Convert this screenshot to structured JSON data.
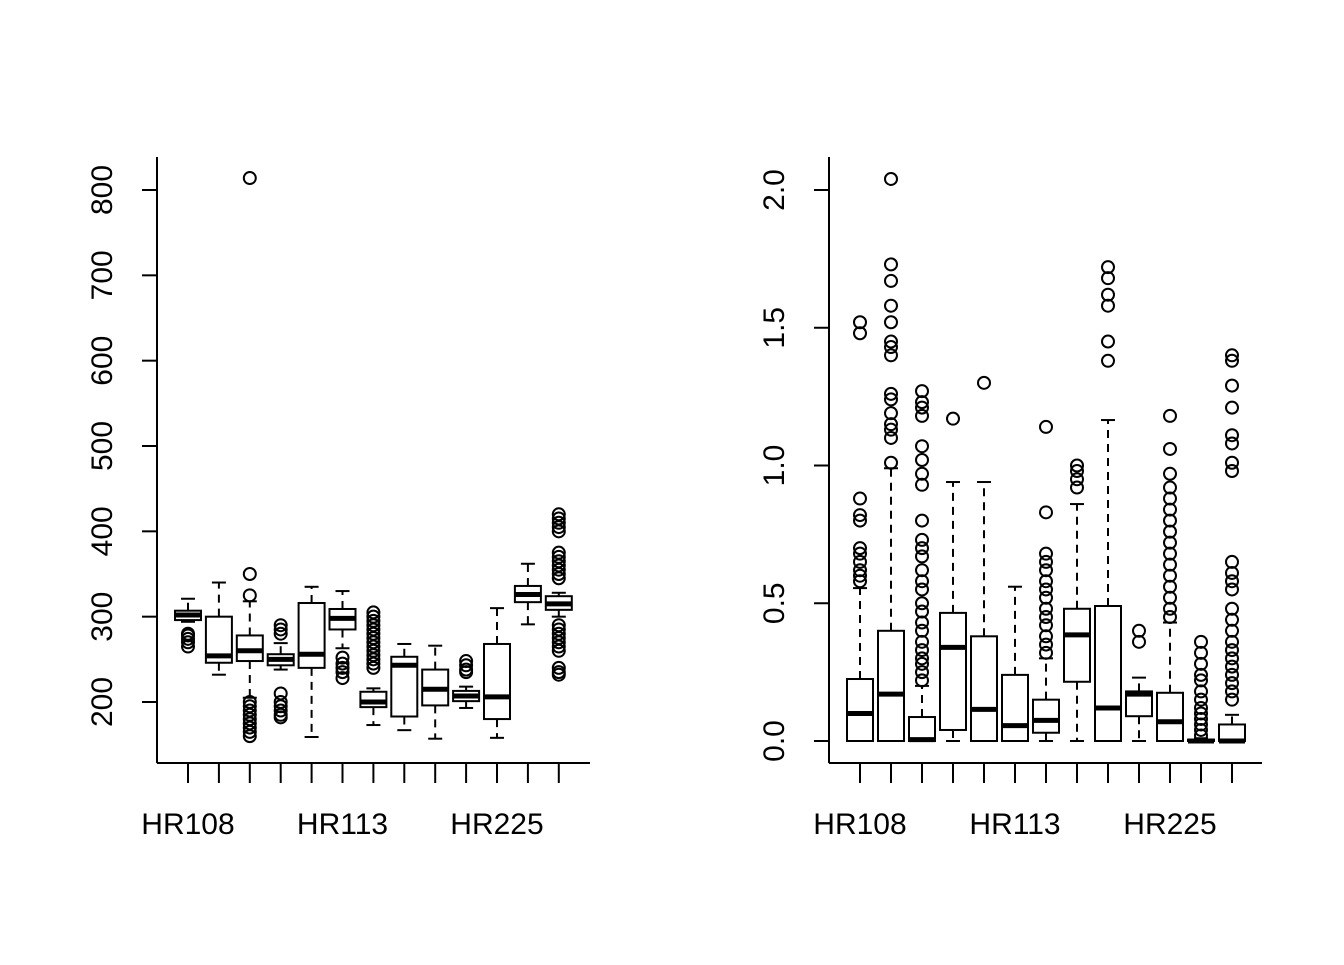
{
  "chart_data": [
    {
      "type": "boxplot",
      "title": "",
      "xlabel": "",
      "ylabel": "",
      "ylim": [
        130,
        830
      ],
      "yticks": [
        200,
        300,
        400,
        500,
        600,
        700,
        800
      ],
      "ytick_labels": [
        "200",
        "300",
        "400",
        "500",
        "600",
        "700",
        "800"
      ],
      "xtick_labels": [
        "HR108",
        "",
        "",
        "",
        "",
        "HR113",
        "",
        "",
        "",
        "",
        "HR225",
        "",
        ""
      ],
      "grid": false,
      "boxes": [
        {
          "lo": 294,
          "q1": 296,
          "med": 302,
          "q3": 307,
          "hi": 321,
          "out": [
            265,
            270,
            274,
            278,
            280
          ]
        },
        {
          "lo": 232,
          "q1": 246,
          "med": 254,
          "q3": 300,
          "hi": 340,
          "out": []
        },
        {
          "lo": 205,
          "q1": 248,
          "med": 260,
          "q3": 278,
          "hi": 318,
          "out": [
            814,
            350,
            325,
            200,
            195,
            190,
            185,
            180,
            175,
            170,
            165,
            160
          ]
        },
        {
          "lo": 238,
          "q1": 243,
          "med": 250,
          "q3": 256,
          "hi": 269,
          "out": [
            290,
            285,
            280,
            210,
            200,
            195,
            190,
            185,
            182
          ]
        },
        {
          "lo": 159,
          "q1": 240,
          "med": 256,
          "q3": 316,
          "hi": 335,
          "out": []
        },
        {
          "lo": 263,
          "q1": 285,
          "med": 298,
          "q3": 309,
          "hi": 330,
          "out": [
            252,
            245,
            240,
            235,
            228
          ]
        },
        {
          "lo": 173,
          "q1": 194,
          "med": 200,
          "q3": 212,
          "hi": 216,
          "out": [
            305,
            300,
            295,
            290,
            285,
            280,
            275,
            270,
            265,
            260,
            255,
            250,
            245,
            240
          ]
        },
        {
          "lo": 167,
          "q1": 183,
          "med": 243,
          "q3": 253,
          "hi": 268,
          "out": []
        },
        {
          "lo": 157,
          "q1": 196,
          "med": 215,
          "q3": 238,
          "hi": 266,
          "out": []
        },
        {
          "lo": 193,
          "q1": 201,
          "med": 207,
          "q3": 213,
          "hi": 218,
          "out": [
            248,
            243,
            238,
            235
          ]
        },
        {
          "lo": 158,
          "q1": 180,
          "med": 206,
          "q3": 268,
          "hi": 310,
          "out": []
        },
        {
          "lo": 291,
          "q1": 317,
          "med": 326,
          "q3": 336,
          "hi": 362,
          "out": []
        },
        {
          "lo": 300,
          "q1": 308,
          "med": 315,
          "q3": 324,
          "hi": 328,
          "out": [
            420,
            415,
            410,
            405,
            400,
            375,
            370,
            365,
            360,
            355,
            350,
            345,
            290,
            285,
            280,
            275,
            270,
            265,
            260,
            240,
            235,
            232
          ]
        }
      ]
    },
    {
      "type": "boxplot",
      "title": "",
      "xlabel": "",
      "ylabel": "",
      "ylim": [
        -0.08,
        2.12
      ],
      "yticks": [
        0,
        0.5,
        1,
        1.5,
        2
      ],
      "ytick_labels": [
        "0.0",
        "0.5",
        "1.0",
        "1.5",
        "2.0"
      ],
      "xtick_labels": [
        "HR108",
        "",
        "",
        "",
        "",
        "HR113",
        "",
        "",
        "",
        "",
        "HR225",
        "",
        ""
      ],
      "grid": false,
      "boxes": [
        {
          "lo": 0,
          "q1": 0,
          "med": 0.1,
          "q3": 0.225,
          "hi": 0.555,
          "out": [
            0.58,
            0.6,
            0.62,
            0.65,
            0.68,
            0.7,
            0.8,
            0.82,
            0.88,
            1.48,
            1.52
          ]
        },
        {
          "lo": 0,
          "q1": 0,
          "med": 0.17,
          "q3": 0.4,
          "hi": 0.99,
          "out": [
            1.01,
            1.1,
            1.13,
            1.15,
            1.19,
            1.24,
            1.26,
            1.4,
            1.43,
            1.45,
            1.52,
            1.58,
            1.67,
            1.73,
            2.04
          ]
        },
        {
          "lo": 0,
          "q1": 0,
          "med": 0.005,
          "q3": 0.087,
          "hi": 0.2,
          "out": [
            0.22,
            0.25,
            0.28,
            0.3,
            0.33,
            0.36,
            0.4,
            0.43,
            0.47,
            0.5,
            0.55,
            0.58,
            0.62,
            0.67,
            0.7,
            0.73,
            0.8,
            0.93,
            0.97,
            1.02,
            1.07,
            1.18,
            1.21,
            1.23,
            1.27
          ]
        },
        {
          "lo": 0,
          "q1": 0.04,
          "med": 0.34,
          "q3": 0.465,
          "hi": 0.94,
          "out": [
            1.17
          ]
        },
        {
          "lo": 0,
          "q1": 0,
          "med": 0.115,
          "q3": 0.38,
          "hi": 0.94,
          "out": [
            1.3
          ]
        },
        {
          "lo": 0,
          "q1": 0,
          "med": 0.056,
          "q3": 0.24,
          "hi": 0.56,
          "out": []
        },
        {
          "lo": 0,
          "q1": 0.03,
          "med": 0.075,
          "q3": 0.15,
          "hi": 0.3,
          "out": [
            0.32,
            0.35,
            0.38,
            0.42,
            0.45,
            0.48,
            0.52,
            0.55,
            0.58,
            0.62,
            0.65,
            0.68,
            0.83,
            1.14
          ]
        },
        {
          "lo": 0,
          "q1": 0.215,
          "med": 0.385,
          "q3": 0.48,
          "hi": 0.86,
          "out": [
            0.92,
            0.95,
            0.98,
            1.0
          ]
        },
        {
          "lo": 0,
          "q1": 0,
          "med": 0.12,
          "q3": 0.49,
          "hi": 1.165,
          "out": [
            1.38,
            1.45,
            1.58,
            1.62,
            1.68,
            1.72
          ]
        },
        {
          "lo": 0,
          "q1": 0.09,
          "med": 0.17,
          "q3": 0.18,
          "hi": 0.23,
          "out": [
            0.36,
            0.4
          ]
        },
        {
          "lo": 0,
          "q1": 0,
          "med": 0.07,
          "q3": 0.175,
          "hi": 0.43,
          "out": [
            0.45,
            0.48,
            0.52,
            0.56,
            0.6,
            0.64,
            0.68,
            0.72,
            0.76,
            0.8,
            0.84,
            0.88,
            0.92,
            0.97,
            1.06,
            1.18
          ]
        },
        {
          "lo": 0,
          "q1": 0,
          "med": 0,
          "q3": 0.005,
          "hi": 0.01,
          "out": [
            0.02,
            0.04,
            0.06,
            0.08,
            0.1,
            0.12,
            0.15,
            0.18,
            0.22,
            0.24,
            0.28,
            0.32,
            0.36
          ]
        },
        {
          "lo": 0,
          "q1": 0,
          "med": 0,
          "q3": 0.06,
          "hi": 0.095,
          "out": [
            0.15,
            0.18,
            0.21,
            0.24,
            0.27,
            0.3,
            0.33,
            0.36,
            0.4,
            0.44,
            0.48,
            0.55,
            0.58,
            0.61,
            0.65,
            0.98,
            1.01,
            1.08,
            1.11,
            1.21,
            1.29,
            1.38,
            1.4
          ]
        }
      ]
    }
  ]
}
